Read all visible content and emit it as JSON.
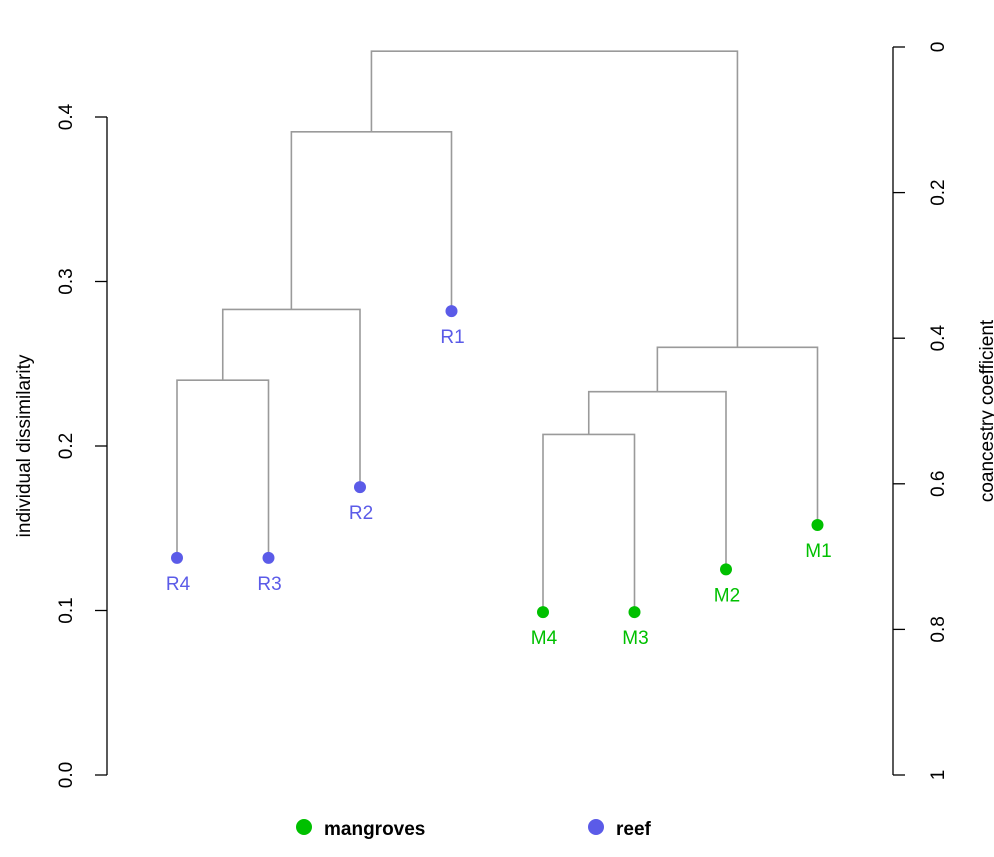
{
  "chart_data": {
    "type": "dendrogram",
    "title": "",
    "y_left": {
      "label": "individual dissimilarity",
      "range": [
        0,
        0.4
      ],
      "ticks": [
        0.0,
        0.1,
        0.2,
        0.3,
        0.4
      ],
      "tick_labels": [
        "0.0",
        "0.1",
        "0.2",
        "0.3",
        "0.4"
      ]
    },
    "y_right": {
      "label": "coancestry coefficient",
      "range": [
        0,
        1
      ],
      "ticks": [
        0,
        0.2,
        0.4,
        0.6,
        0.8,
        1
      ],
      "tick_labels": [
        "0",
        "0.2",
        "0.4",
        "0.6",
        "0.8",
        "1"
      ],
      "direction": "downward"
    },
    "leaves": [
      {
        "label": "R4",
        "group": "reef",
        "order": 1,
        "height": 0.132
      },
      {
        "label": "R3",
        "group": "reef",
        "order": 2,
        "height": 0.132
      },
      {
        "label": "R2",
        "group": "reef",
        "order": 3,
        "height": 0.175
      },
      {
        "label": "R1",
        "group": "reef",
        "order": 4,
        "height": 0.282
      },
      {
        "label": "M4",
        "group": "mangroves",
        "order": 5,
        "height": 0.099
      },
      {
        "label": "M3",
        "group": "mangroves",
        "order": 6,
        "height": 0.099
      },
      {
        "label": "M2",
        "group": "mangroves",
        "order": 7,
        "height": 0.125
      },
      {
        "label": "M1",
        "group": "mangroves",
        "order": 8,
        "height": 0.152
      }
    ],
    "merges": [
      {
        "id": "A",
        "left": "R4",
        "right": "R3",
        "height": 0.24
      },
      {
        "id": "B",
        "left": "A",
        "right": "R2",
        "height": 0.283
      },
      {
        "id": "C",
        "left": "B",
        "right": "R1",
        "height": 0.391
      },
      {
        "id": "D",
        "left": "M4",
        "right": "M3",
        "height": 0.207
      },
      {
        "id": "E",
        "left": "D",
        "right": "M2",
        "height": 0.233
      },
      {
        "id": "F",
        "left": "E",
        "right": "M1",
        "height": 0.26
      },
      {
        "id": "G",
        "left": "C",
        "right": "F",
        "height": 0.44
      }
    ],
    "legend": {
      "placement": "bottom",
      "items": [
        {
          "label": "mangroves",
          "color": "#00c000"
        },
        {
          "label": "reef",
          "color": "#5b5be8"
        }
      ]
    },
    "colors": {
      "mangroves": "#00c000",
      "reef": "#5b5be8",
      "branch": "#9a9a9a"
    }
  }
}
